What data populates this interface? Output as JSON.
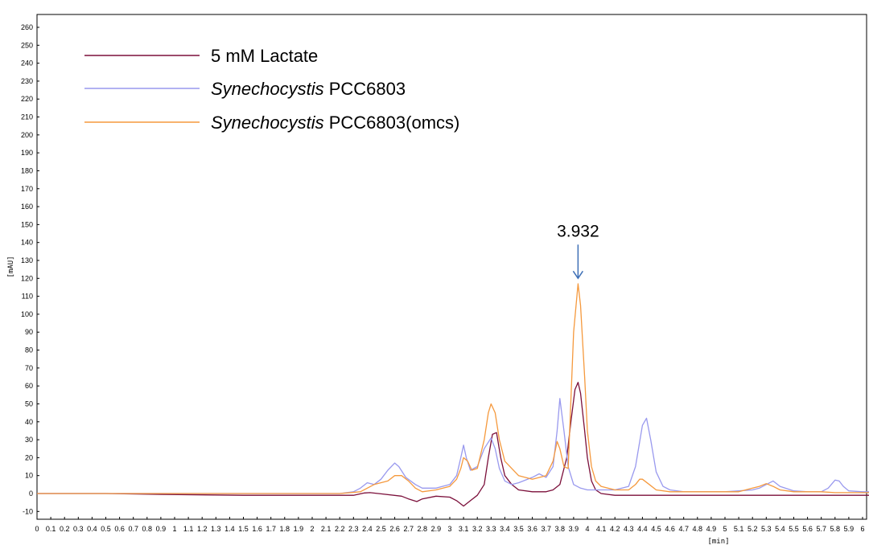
{
  "chart_data": {
    "type": "line",
    "title": "",
    "xlabel": "[min]",
    "ylabel": "[mAU]",
    "xlim": [
      0,
      6.05
    ],
    "ylim": [
      -15,
      265
    ],
    "x_ticks": [
      0,
      0.1,
      0.2,
      0.3,
      0.4,
      0.5,
      0.6,
      0.7,
      0.8,
      0.9,
      1,
      1.1,
      1.2,
      1.3,
      1.4,
      1.5,
      1.6,
      1.7,
      1.8,
      1.9,
      2,
      2.1,
      2.2,
      2.3,
      2.4,
      2.5,
      2.6,
      2.7,
      2.8,
      2.9,
      3,
      3.1,
      3.2,
      3.3,
      3.4,
      3.5,
      3.6,
      3.7,
      3.8,
      3.9,
      4,
      4.1,
      4.2,
      4.3,
      4.4,
      4.5,
      4.6,
      4.7,
      4.8,
      4.9,
      5,
      5.1,
      5.2,
      5.3,
      5.4,
      5.5,
      5.6,
      5.7,
      5.8,
      5.9,
      6
    ],
    "y_ticks": [
      -10,
      0,
      10,
      20,
      30,
      40,
      50,
      60,
      70,
      80,
      90,
      100,
      110,
      120,
      130,
      140,
      150,
      160,
      170,
      180,
      190,
      200,
      210,
      220,
      230,
      240,
      250,
      260
    ],
    "legend_position": "top-left",
    "grid": false,
    "series": [
      {
        "name": "5 mM Lactate",
        "color": "#7b0f3a",
        "x": [
          0,
          0.5,
          0.9,
          1.5,
          2.0,
          2.3,
          2.38,
          2.42,
          2.5,
          2.65,
          2.7,
          2.76,
          2.8,
          2.9,
          3.0,
          3.05,
          3.1,
          3.15,
          3.2,
          3.25,
          3.28,
          3.31,
          3.34,
          3.37,
          3.4,
          3.45,
          3.5,
          3.6,
          3.7,
          3.75,
          3.8,
          3.85,
          3.88,
          3.91,
          3.932,
          3.95,
          3.98,
          4.0,
          4.03,
          4.06,
          4.1,
          4.2,
          4.3,
          4.5,
          5.0,
          5.5,
          6.0,
          6.05
        ],
        "y": [
          0,
          0,
          -0.5,
          -1,
          -1,
          -1,
          0.3,
          0.5,
          -0.2,
          -1.5,
          -3,
          -4.5,
          -3,
          -1.5,
          -2,
          -4,
          -7,
          -4,
          -1,
          5,
          20,
          33,
          34,
          20,
          10,
          5,
          2,
          1,
          1,
          2,
          5,
          20,
          40,
          58,
          62,
          56,
          35,
          20,
          7,
          2,
          0,
          -1,
          -1,
          -1,
          -1,
          -1,
          -1,
          -1
        ]
      },
      {
        "name": "Synechocystis PCC6803",
        "color": "#9999ee",
        "x": [
          0,
          1,
          2,
          2.2,
          2.3,
          2.35,
          2.4,
          2.45,
          2.5,
          2.55,
          2.6,
          2.63,
          2.68,
          2.75,
          2.8,
          2.9,
          3.0,
          3.05,
          3.08,
          3.1,
          3.12,
          3.15,
          3.2,
          3.25,
          3.3,
          3.33,
          3.36,
          3.4,
          3.45,
          3.5,
          3.6,
          3.65,
          3.7,
          3.75,
          3.78,
          3.8,
          3.83,
          3.86,
          3.9,
          3.95,
          4.0,
          4.1,
          4.2,
          4.3,
          4.35,
          4.4,
          4.43,
          4.46,
          4.5,
          4.55,
          4.6,
          4.7,
          4.8,
          4.9,
          5.0,
          5.1,
          5.2,
          5.25,
          5.3,
          5.35,
          5.4,
          5.5,
          5.6,
          5.7,
          5.75,
          5.8,
          5.83,
          5.86,
          5.9,
          6.0,
          6.05
        ],
        "y": [
          0,
          0,
          0,
          0,
          1,
          3,
          6,
          5,
          8,
          13,
          17,
          15,
          9,
          5,
          3,
          3,
          5,
          10,
          20,
          27,
          20,
          13,
          15,
          25,
          31,
          25,
          14,
          7,
          5,
          6,
          9,
          11,
          9,
          15,
          35,
          53,
          35,
          15,
          5,
          3,
          2,
          2,
          2,
          4,
          15,
          38,
          42,
          30,
          12,
          4,
          2,
          1,
          1,
          1,
          1,
          1.5,
          2,
          3,
          5,
          7,
          4,
          1.5,
          1,
          1,
          3,
          7.5,
          7,
          4,
          1.5,
          1,
          1
        ]
      },
      {
        "name": "Synechocystis PCC6803(omcs)",
        "color": "#f5993d",
        "x": [
          0,
          1,
          2,
          2.2,
          2.35,
          2.45,
          2.55,
          2.6,
          2.65,
          2.7,
          2.75,
          2.8,
          2.9,
          3.0,
          3.05,
          3.08,
          3.1,
          3.13,
          3.16,
          3.2,
          3.25,
          3.28,
          3.3,
          3.33,
          3.36,
          3.4,
          3.5,
          3.6,
          3.7,
          3.75,
          3.78,
          3.8,
          3.83,
          3.86,
          3.9,
          3.932,
          3.95,
          3.98,
          4.0,
          4.03,
          4.06,
          4.1,
          4.2,
          4.3,
          4.35,
          4.38,
          4.4,
          4.45,
          4.5,
          4.6,
          4.8,
          5.0,
          5.1,
          5.2,
          5.25,
          5.3,
          5.35,
          5.4,
          5.5,
          5.7,
          5.8,
          5.9,
          6.0,
          6.05
        ],
        "y": [
          0,
          0,
          0,
          0,
          1,
          5,
          7,
          10,
          10,
          7,
          3,
          1,
          2,
          4,
          8,
          14,
          20,
          18,
          13,
          14,
          30,
          45,
          50,
          45,
          30,
          18,
          10,
          8,
          10,
          18,
          29,
          25,
          15,
          14,
          90,
          117,
          105,
          65,
          35,
          15,
          7,
          4,
          2,
          2,
          5,
          8,
          8,
          5,
          2,
          1,
          1,
          1,
          1,
          3,
          4,
          5.5,
          4,
          2,
          1,
          1,
          0.5,
          0.5,
          0.5,
          0.5
        ]
      }
    ],
    "annotations": [
      {
        "text": "3.932",
        "x": 3.932,
        "y": 120,
        "type": "arrow"
      }
    ]
  },
  "legend": {
    "entries": [
      {
        "label": "5 mM Lactate",
        "italic": "",
        "rest": "5 mM Lactate",
        "color": "#7b0f3a"
      },
      {
        "label": "Synechocystis PCC6803",
        "italic": "Synechocystis",
        "rest": " PCC6803",
        "color": "#9999ee"
      },
      {
        "label": "Synechocystis PCC6803(omcs)",
        "italic": "Synechocystis",
        "rest": " PCC6803(omcs)",
        "color": "#f5993d"
      }
    ]
  }
}
